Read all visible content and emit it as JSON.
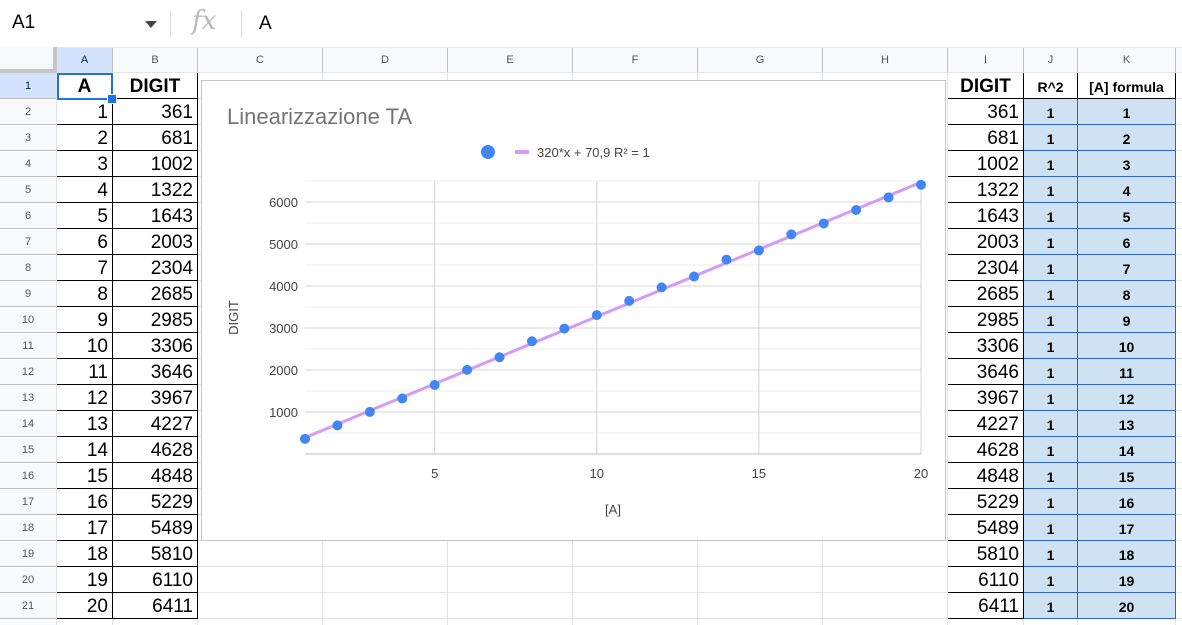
{
  "formula_bar": {
    "name_box": "A1",
    "fx_label": "fx",
    "value": "A"
  },
  "columns": [
    "A",
    "B",
    "C",
    "D",
    "E",
    "F",
    "G",
    "H",
    "I",
    "J",
    "K"
  ],
  "rows": [
    "1",
    "2",
    "3",
    "4",
    "5",
    "6",
    "7",
    "8",
    "9",
    "10",
    "11",
    "12",
    "13",
    "14",
    "15",
    "16",
    "17",
    "18",
    "19",
    "20",
    "21"
  ],
  "left_table": {
    "headers": [
      "A",
      "DIGIT"
    ],
    "a": [
      "1",
      "2",
      "3",
      "4",
      "5",
      "6",
      "7",
      "8",
      "9",
      "10",
      "11",
      "12",
      "13",
      "14",
      "15",
      "16",
      "17",
      "18",
      "19",
      "20"
    ],
    "digit": [
      "361",
      "681",
      "1002",
      "1322",
      "1643",
      "2003",
      "2304",
      "2685",
      "2985",
      "3306",
      "3646",
      "3967",
      "4227",
      "4628",
      "4848",
      "5229",
      "5489",
      "5810",
      "6110",
      "6411"
    ]
  },
  "right_table": {
    "headers": [
      "DIGIT",
      "R^2",
      "[A] formula"
    ],
    "digit": [
      "361",
      "681",
      "1002",
      "1322",
      "1643",
      "2003",
      "2304",
      "2685",
      "2985",
      "3306",
      "3646",
      "3967",
      "4227",
      "4628",
      "4848",
      "5229",
      "5489",
      "5810",
      "6110",
      "6411"
    ],
    "r2": [
      "1",
      "1",
      "1",
      "1",
      "1",
      "1",
      "1",
      "1",
      "1",
      "1",
      "1",
      "1",
      "1",
      "1",
      "1",
      "1",
      "1",
      "1",
      "1",
      "1"
    ],
    "formula": [
      "1",
      "2",
      "3",
      "4",
      "5",
      "6",
      "7",
      "8",
      "9",
      "10",
      "11",
      "12",
      "13",
      "14",
      "15",
      "16",
      "17",
      "18",
      "19",
      "20"
    ]
  },
  "chart_data": {
    "type": "scatter",
    "title": "Linearizzazione TA",
    "xlabel": "[A]",
    "ylabel": "DIGIT",
    "xlim": [
      1,
      20
    ],
    "ylim": [
      0,
      6500
    ],
    "xticks": [
      "5",
      "10",
      "15",
      "20"
    ],
    "yticks": [
      "1000",
      "2000",
      "3000",
      "4000",
      "5000",
      "6000"
    ],
    "grid": true,
    "legend": "top",
    "trendline_label": "320*x + 70,9 R² = 1",
    "trendline": {
      "slope": 320,
      "intercept": 70.9
    },
    "x": [
      1,
      2,
      3,
      4,
      5,
      6,
      7,
      8,
      9,
      10,
      11,
      12,
      13,
      14,
      15,
      16,
      17,
      18,
      19,
      20
    ],
    "y": [
      361,
      681,
      1002,
      1322,
      1643,
      2003,
      2304,
      2685,
      2985,
      3306,
      3646,
      3967,
      4227,
      4628,
      4848,
      5229,
      5489,
      5810,
      6110,
      6411
    ],
    "point_color": "#4285f4",
    "trendline_color": "#d39bf3"
  }
}
